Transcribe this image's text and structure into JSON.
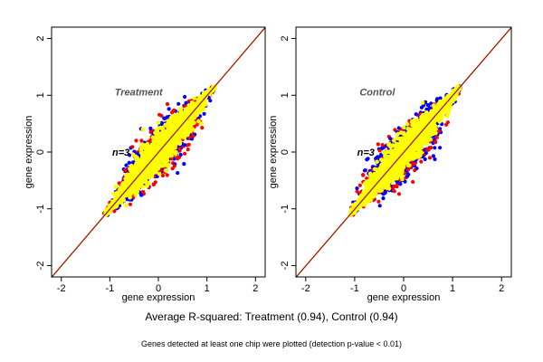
{
  "chart_data": {
    "type": "scatter",
    "panels": [
      {
        "title": "Treatment",
        "n_label": "n=3",
        "xlabel": "gene expression",
        "ylabel": "gene expression",
        "xlim": [
          -2.2,
          2.2
        ],
        "ylim": [
          -2.2,
          2.2
        ],
        "xticks": [
          "-2",
          "-1",
          "0",
          "1",
          "2"
        ],
        "yticks": [
          "-2",
          "-1",
          "0",
          "1",
          "2"
        ],
        "identity_line": true,
        "cloud": {
          "x_range": [
            -1.1,
            1.15
          ],
          "spread": 0.22
        }
      },
      {
        "title": "Control",
        "n_label": "n=3",
        "xlabel": "gene expression",
        "ylabel": "gene expression",
        "xlim": [
          -2.2,
          2.2
        ],
        "ylim": [
          -2.2,
          2.2
        ],
        "xticks": [
          "-2",
          "-1",
          "0",
          "1",
          "2"
        ],
        "yticks": [
          "-2",
          "-1",
          "0",
          "1",
          "2"
        ],
        "identity_line": true,
        "cloud": {
          "x_range": [
            -1.1,
            1.15
          ],
          "spread": 0.22
        }
      }
    ],
    "point_colors": {
      "main": "#ffff00",
      "alt1": "#0000ff",
      "alt2": "#ff0000"
    },
    "line_colors": [
      "#ff8c00",
      "#8b0000"
    ],
    "grid": false,
    "legend": "none"
  },
  "captions": {
    "main": "Average R-squared: Treatment (0.94), Control (0.94)",
    "note": "Genes detected at least one chip were plotted (detection p-value < 0.01)"
  }
}
